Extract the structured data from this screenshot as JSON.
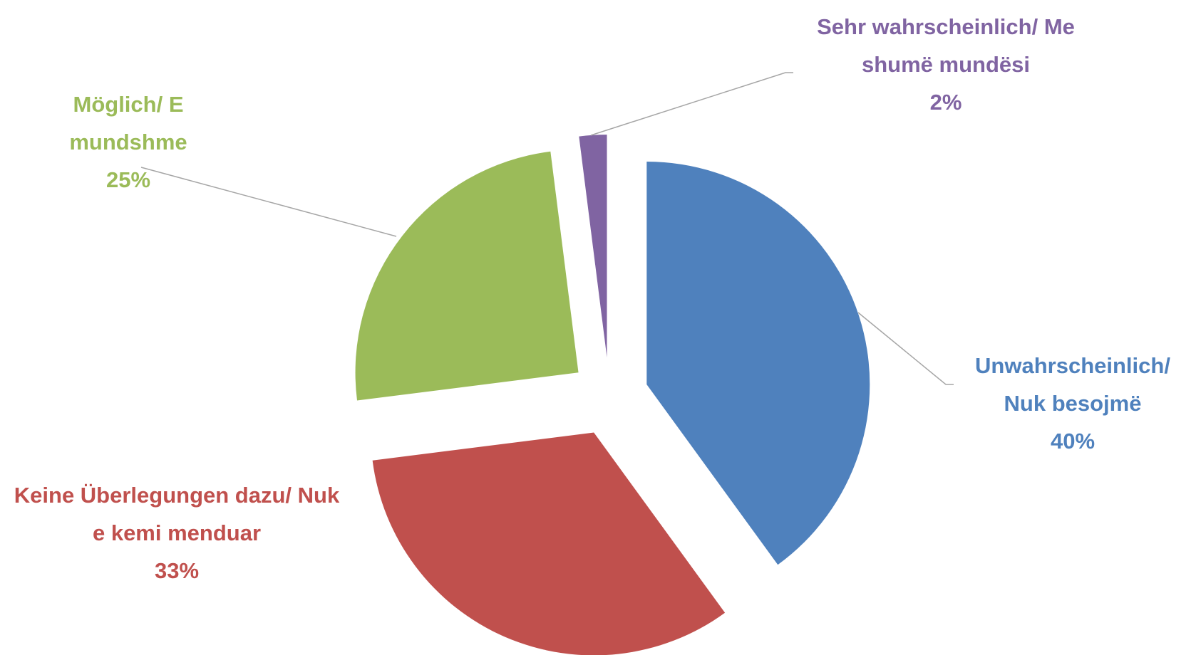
{
  "chart_data": {
    "type": "pie",
    "categories": [
      "Unwahrscheinlich/ Nuk besojmë",
      "Keine Überlegungen dazu/ Nuk e kemi menduar",
      "Möglich/ E mundshme",
      "Sehr wahrscheinlich/ Me shumë mundësi"
    ],
    "values": [
      40,
      33,
      25,
      2
    ],
    "value_labels": [
      "40%",
      "33%",
      "25%",
      "2%"
    ],
    "colors": [
      "#4f81bd",
      "#c0504d",
      "#9bbb59",
      "#8064a2"
    ]
  }
}
